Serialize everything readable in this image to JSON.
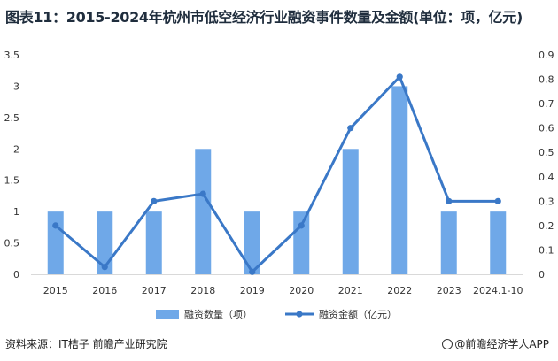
{
  "title": "图表11：2015-2024年杭州市低空经济行业融资事件数量及金额(单位：项，亿元)",
  "footer": {
    "source": "资料来源：IT桔子 前瞻产业研究院",
    "brand": "@前瞻经济学人APP"
  },
  "colors": {
    "bar": "#6fa8e8",
    "line": "#3a78c7"
  },
  "chart_data": {
    "type": "bar",
    "categories": [
      "2015",
      "2016",
      "2017",
      "2018",
      "2019",
      "2020",
      "2021",
      "2022",
      "2023",
      "2024.1-10"
    ],
    "series": [
      {
        "name": "融资数量（项）",
        "type": "bar",
        "axis": "left",
        "values": [
          1,
          1,
          1,
          2,
          1,
          1,
          2,
          3,
          1,
          1
        ]
      },
      {
        "name": "融资金额（亿元）",
        "type": "line",
        "axis": "right",
        "values": [
          0.2,
          0.03,
          0.3,
          0.33,
          0.01,
          0.2,
          0.6,
          0.81,
          0.3,
          0.3
        ]
      }
    ],
    "y_left": {
      "ylim": [
        0,
        3.5
      ],
      "ticks": [
        "0",
        "0.5",
        "1",
        "1.5",
        "2",
        "2.5",
        "3",
        "3.5"
      ]
    },
    "y_right": {
      "ylim": [
        0,
        0.9
      ],
      "ticks": [
        "0",
        "0.1",
        "0.2",
        "0.3",
        "0.4",
        "0.5",
        "0.6",
        "0.7",
        "0.8",
        "0.9"
      ]
    },
    "grid": false,
    "legend_position": "bottom"
  }
}
